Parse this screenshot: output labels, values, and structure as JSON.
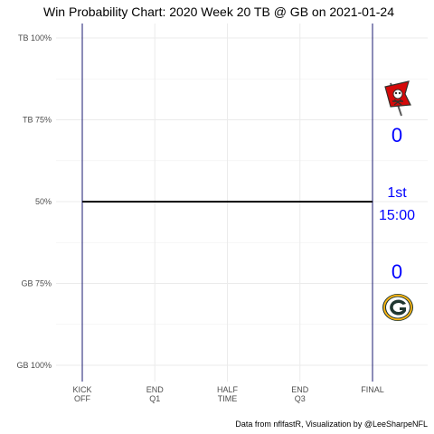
{
  "chart_data": {
    "type": "line",
    "title": "Win Probability Chart: 2020 Week 20 TB @ GB on 2021-01-24",
    "caption": "Data from nflfastR, Visualization by @LeeSharpeNFL",
    "y_ticks": [
      {
        "value": 1.0,
        "label": "TB 100%"
      },
      {
        "value": 0.75,
        "label": "TB 75%"
      },
      {
        "value": 0.5,
        "label": "50%"
      },
      {
        "value": 0.25,
        "label": "GB 75%"
      },
      {
        "value": 0.0,
        "label": "GB 100%"
      }
    ],
    "y_minor": [
      0.875,
      0.625,
      0.375,
      0.125
    ],
    "ylim": [
      0,
      1
    ],
    "x_ticks": [
      {
        "value": 0,
        "lines": [
          "KICK",
          "OFF"
        ]
      },
      {
        "value": 900,
        "lines": [
          "END",
          "Q1"
        ]
      },
      {
        "value": 1800,
        "lines": [
          "HALF",
          "TIME"
        ]
      },
      {
        "value": 2700,
        "lines": [
          "END",
          "Q3"
        ]
      },
      {
        "value": 3600,
        "lines": [
          "FINAL"
        ]
      }
    ],
    "xlim": [
      0,
      3600
    ],
    "series": [
      {
        "x": [
          0,
          3600
        ],
        "y": [
          0.5,
          0.5
        ],
        "color": "#000000"
      }
    ],
    "boundary_lines": [
      {
        "x": 0,
        "color": "#191970"
      },
      {
        "x": 3600,
        "color": "#191970"
      }
    ],
    "teams": {
      "away": {
        "abbr": "TB",
        "score": "0",
        "icon": "buccaneers-logo-icon",
        "color": "#d50a0a"
      },
      "home": {
        "abbr": "GB",
        "score": "0",
        "icon": "packers-logo-icon",
        "color": "#203731"
      }
    },
    "game_clock": {
      "quarter": "1st",
      "time": "15:00"
    },
    "grid": true,
    "annotation_color": "#0000ff"
  }
}
